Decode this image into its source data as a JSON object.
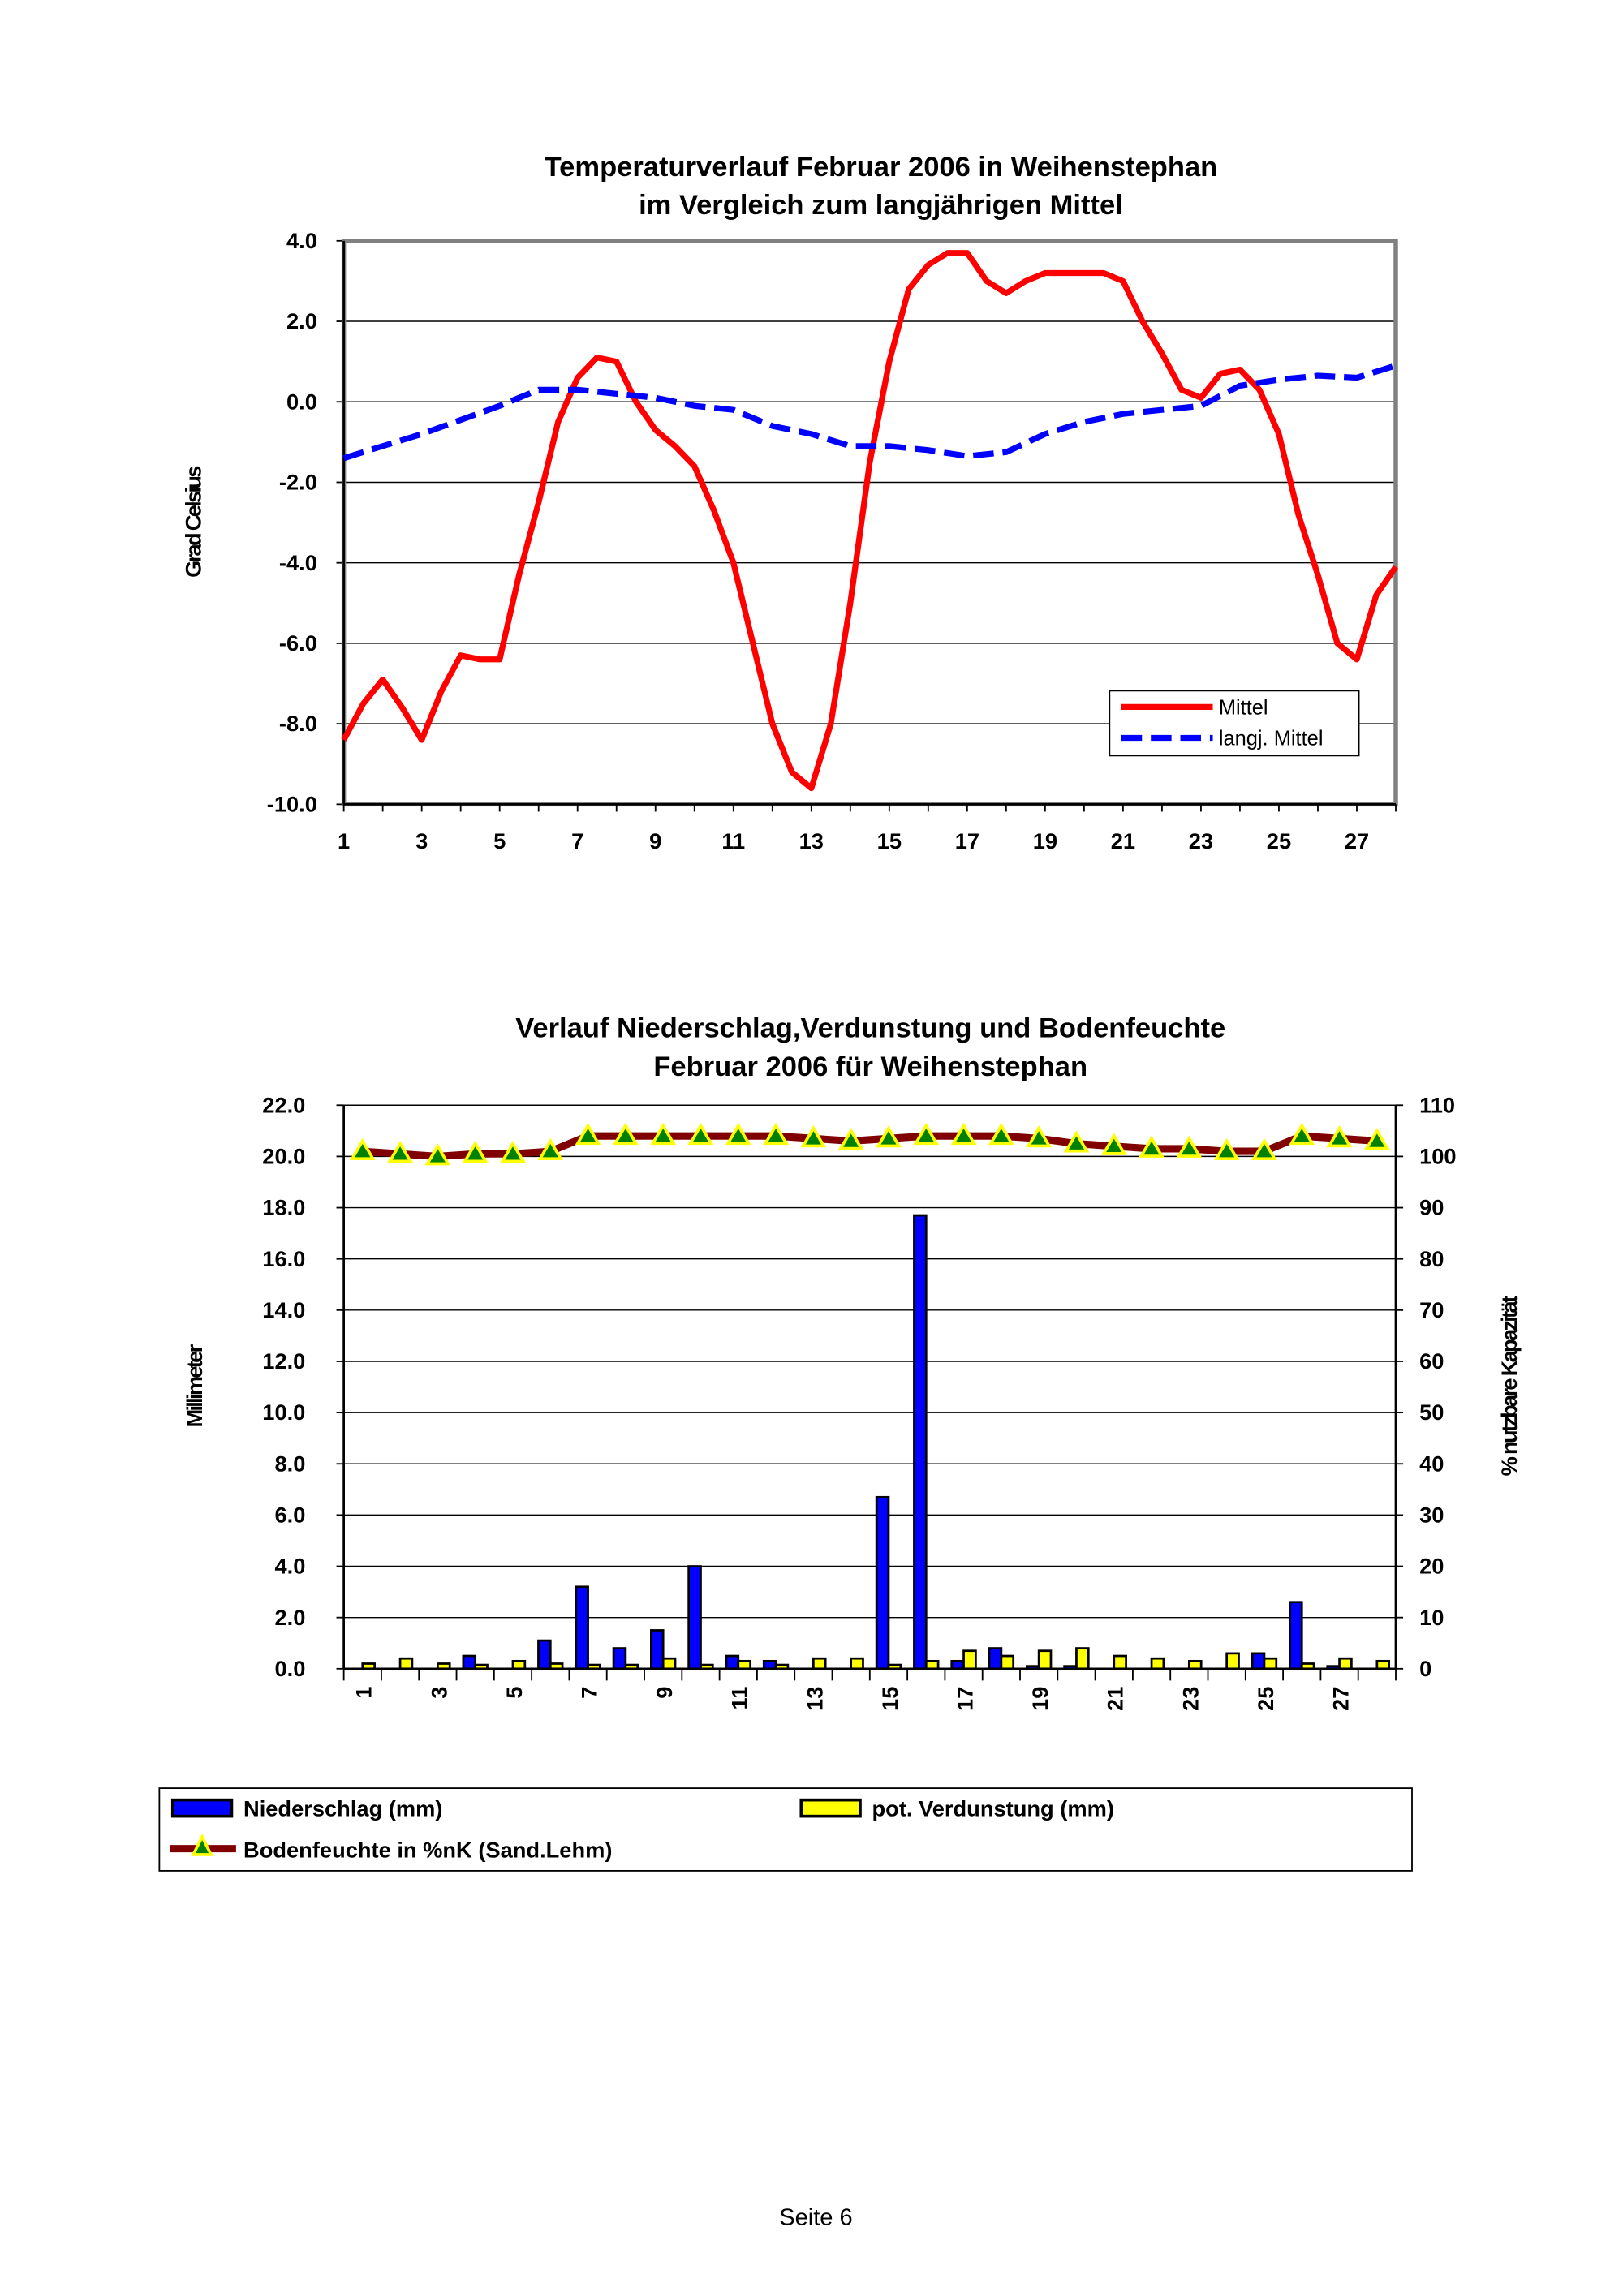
{
  "chart_data": [
    {
      "type": "line",
      "title": "Temperaturverlauf Februar 2006 in Weihenstephan",
      "subtitle": "im Vergleich zum langjährigen Mittel",
      "xlabel": "",
      "ylabel": "Grad Celsius",
      "ylim": [
        -10,
        4
      ],
      "xlim": [
        1,
        28
      ],
      "yticks": [
        "4.0",
        "2.0",
        "0.0",
        "-2.0",
        "-4.0",
        "-6.0",
        "-8.0",
        "-10.0"
      ],
      "xticks": [
        "1",
        "3",
        "5",
        "7",
        "9",
        "11",
        "13",
        "15",
        "17",
        "19",
        "21",
        "23",
        "25",
        "27"
      ],
      "grid": true,
      "legend_position": "bottom-right",
      "series": [
        {
          "name": "Mittel",
          "color": "#ff0000",
          "style": "solid",
          "x": [
            1,
            1.5,
            2,
            2.5,
            3,
            3.5,
            4,
            4.5,
            5,
            5.5,
            6,
            6.5,
            7,
            7.5,
            8,
            8.5,
            9,
            9.5,
            10,
            10.5,
            11,
            11.5,
            12,
            12.5,
            13,
            13.5,
            14,
            14.5,
            15,
            15.5,
            16,
            16.5,
            17,
            17.5,
            18,
            18.5,
            19,
            19.5,
            20,
            20.5,
            21,
            21.5,
            22,
            22.5,
            23,
            23.5,
            24,
            24.5,
            25,
            25.5,
            26,
            26.5,
            27,
            27.5,
            28
          ],
          "y": [
            -8.4,
            -7.5,
            -6.9,
            -7.6,
            -8.4,
            -7.2,
            -6.3,
            -6.4,
            -6.4,
            -4.3,
            -2.5,
            -0.5,
            0.6,
            1.1,
            1.0,
            0.0,
            -0.7,
            -1.1,
            -1.6,
            -2.7,
            -4.0,
            -6.0,
            -8.0,
            -9.2,
            -9.6,
            -8.0,
            -5.0,
            -1.5,
            1.0,
            2.8,
            3.4,
            3.7,
            3.7,
            3.0,
            2.7,
            3.0,
            3.2,
            3.2,
            3.2,
            3.2,
            3.0,
            2.0,
            1.2,
            0.3,
            0.1,
            0.7,
            0.8,
            0.3,
            -0.8,
            -2.8,
            -4.3,
            -6.0,
            -6.4,
            -4.8,
            -4.1
          ]
        },
        {
          "name": "langj. Mittel",
          "color": "#0000ff",
          "style": "dashed",
          "x": [
            1,
            2,
            3,
            4,
            5,
            6,
            7,
            8,
            9,
            10,
            11,
            12,
            13,
            14,
            15,
            16,
            17,
            18,
            19,
            20,
            21,
            22,
            23,
            24,
            25,
            26,
            27,
            28
          ],
          "y": [
            -1.4,
            -1.1,
            -0.8,
            -0.45,
            -0.1,
            0.3,
            0.3,
            0.2,
            0.1,
            -0.1,
            -0.2,
            -0.6,
            -0.8,
            -1.1,
            -1.1,
            -1.2,
            -1.35,
            -1.25,
            -0.8,
            -0.5,
            -0.3,
            -0.2,
            -0.1,
            0.4,
            0.55,
            0.65,
            0.6,
            0.9
          ]
        }
      ]
    },
    {
      "type": "bar",
      "title": "Verlauf Niederschlag,Verdunstung und Bodenfeuchte",
      "subtitle": "Februar 2006 für Weihenstephan",
      "ylabel": "Millimeter",
      "y2label": "% nutzbare Kapazität",
      "ylim": [
        0,
        22
      ],
      "y2lim": [
        0,
        110
      ],
      "yticks": [
        "22.0",
        "20.0",
        "18.0",
        "16.0",
        "14.0",
        "12.0",
        "10.0",
        "8.0",
        "6.0",
        "4.0",
        "2.0",
        "0.0"
      ],
      "y2ticks": [
        "110",
        "100",
        "90",
        "80",
        "70",
        "60",
        "50",
        "40",
        "30",
        "20",
        "10",
        "0"
      ],
      "xticks": [
        "1",
        "3",
        "5",
        "7",
        "9",
        "11",
        "13",
        "15",
        "17",
        "19",
        "21",
        "23",
        "25",
        "27"
      ],
      "categories": [
        1,
        2,
        3,
        4,
        5,
        6,
        7,
        8,
        9,
        10,
        11,
        12,
        13,
        14,
        15,
        16,
        17,
        18,
        19,
        20,
        21,
        22,
        23,
        24,
        25,
        26,
        27,
        28
      ],
      "grid": true,
      "legend_position": "bottom",
      "series": [
        {
          "name": "Niederschlag (mm)",
          "color": "#0000ff",
          "axis": "left",
          "values": [
            0,
            0,
            0,
            0.5,
            0,
            1.1,
            3.2,
            0.8,
            1.5,
            4.0,
            0.5,
            0.3,
            0,
            0,
            6.7,
            17.7,
            0.3,
            0.8,
            0.1,
            0.1,
            0,
            0,
            0,
            0,
            0.6,
            2.6,
            0.1,
            0
          ]
        },
        {
          "name": "pot. Verdunstung (mm)",
          "color": "#ffff00",
          "axis": "left",
          "values": [
            0.2,
            0.4,
            0.2,
            0.15,
            0.3,
            0.2,
            0.15,
            0.15,
            0.4,
            0.15,
            0.3,
            0.15,
            0.4,
            0.4,
            0.15,
            0.3,
            0.7,
            0.5,
            0.7,
            0.8,
            0.5,
            0.4,
            0.3,
            0.6,
            0.4,
            0.2,
            0.4,
            0.3
          ]
        },
        {
          "name": "Bodenfeuchte in %nK (Sand.Lehm)",
          "color": "#800000",
          "marker_color": "#008000",
          "axis": "right",
          "type": "line",
          "values": [
            101,
            100.5,
            100,
            100.5,
            100.5,
            101,
            104,
            104,
            104,
            104,
            104,
            104,
            103.5,
            103,
            103.5,
            104,
            104,
            104,
            103.5,
            102.5,
            102,
            101.5,
            101.5,
            101,
            101,
            104,
            103.5,
            103
          ]
        }
      ]
    }
  ],
  "footer": {
    "page": "Seite 6"
  }
}
